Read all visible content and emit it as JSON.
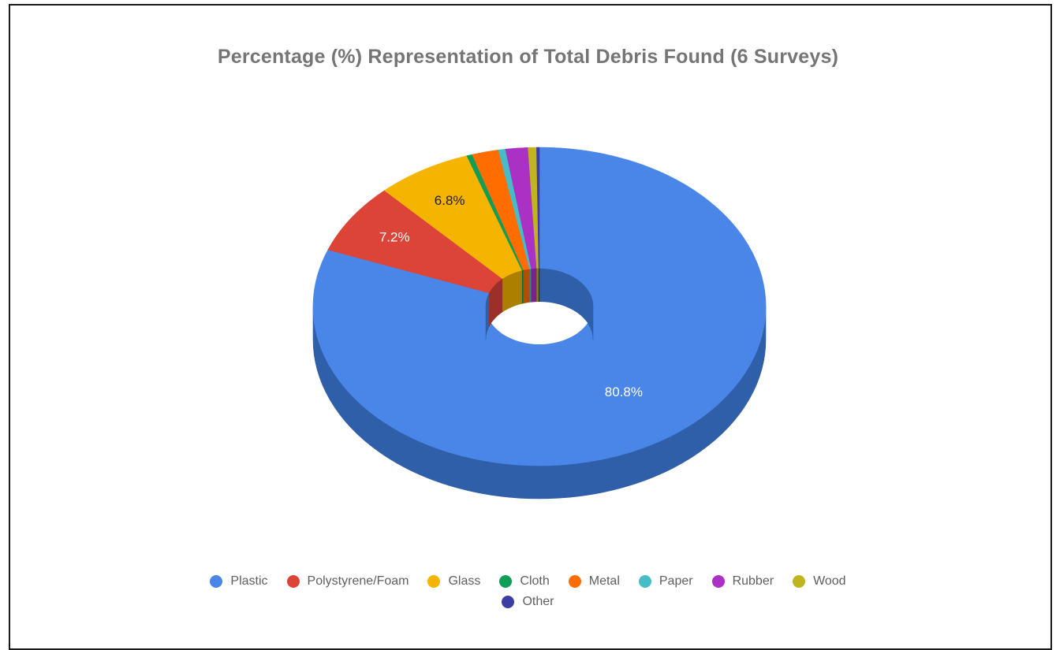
{
  "chart_data": {
    "type": "pie",
    "title": "Percentage (%) Representation of Total Debris Found (6 Surveys)",
    "style": "3d-donut",
    "legend_position": "bottom",
    "slices": [
      {
        "label": "Plastic",
        "value": 80.8,
        "color": "#4a86e8",
        "side_color": "#2f5fa8",
        "shown_label": "80.8%",
        "label_color": "#ffffff"
      },
      {
        "label": "Polystyrene/Foam",
        "value": 7.2,
        "color": "#db4437",
        "side_color": "#9c2f27",
        "shown_label": "7.2%",
        "label_color": "#ffffff"
      },
      {
        "label": "Glass",
        "value": 6.8,
        "color": "#f4b400",
        "side_color": "#ad7f00",
        "shown_label": "6.8%",
        "label_color": "#222222"
      },
      {
        "label": "Cloth",
        "value": 0.4,
        "color": "#0f9d58",
        "side_color": "#0a6e3e",
        "shown_label": "",
        "label_color": "#ffffff"
      },
      {
        "label": "Metal",
        "value": 1.9,
        "color": "#ff6d01",
        "side_color": "#b34d01",
        "shown_label": "",
        "label_color": "#ffffff"
      },
      {
        "label": "Paper",
        "value": 0.5,
        "color": "#46bdc6",
        "side_color": "#31858b",
        "shown_label": "",
        "label_color": "#ffffff"
      },
      {
        "label": "Rubber",
        "value": 1.6,
        "color": "#ab30c4",
        "side_color": "#78228a",
        "shown_label": "",
        "label_color": "#ffffff"
      },
      {
        "label": "Wood",
        "value": 0.6,
        "color": "#c0b41f",
        "side_color": "#877e16",
        "shown_label": "",
        "label_color": "#ffffff"
      },
      {
        "label": "Other",
        "value": 0.2,
        "color": "#3d3ca3",
        "side_color": "#2a2a72",
        "shown_label": "",
        "label_color": "#ffffff"
      }
    ]
  }
}
